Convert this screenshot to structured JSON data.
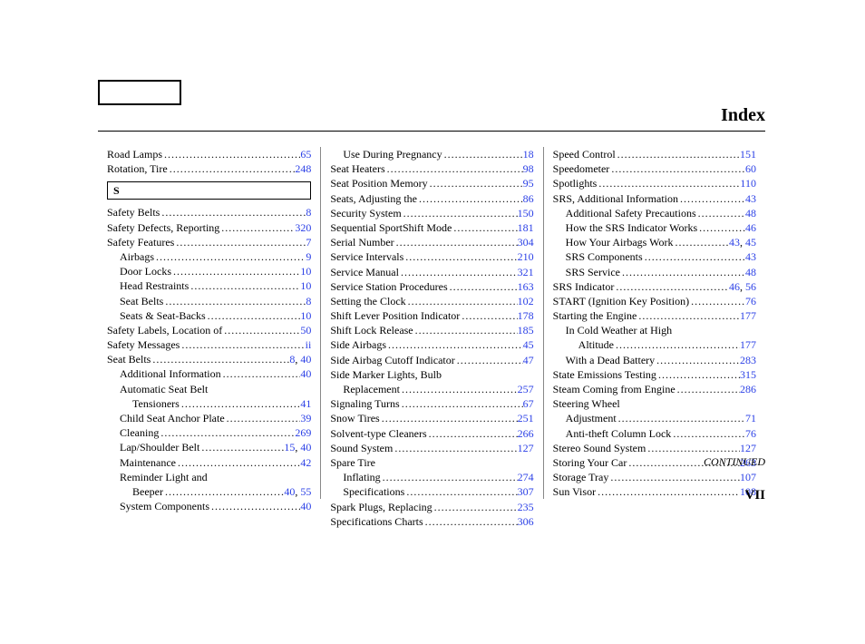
{
  "header": {
    "title": "Index"
  },
  "footer": {
    "continued": "CONTINUED",
    "folio": "VII"
  },
  "letters": {
    "S": "S"
  },
  "columns": [
    {
      "items": [
        {
          "label": "Road Lamps",
          "pages": [
            "65"
          ]
        },
        {
          "label": "Rotation, Tire",
          "pages": [
            "248"
          ]
        },
        {
          "letter": "S"
        },
        {
          "label": "Safety Belts",
          "pages": [
            "8"
          ]
        },
        {
          "label": "Safety Defects, Reporting",
          "pages": [
            "320"
          ]
        },
        {
          "label": "Safety Features",
          "pages": [
            "7"
          ]
        },
        {
          "label": "Airbags",
          "pages": [
            "9"
          ],
          "indent": 1
        },
        {
          "label": "Door Locks",
          "pages": [
            "10"
          ],
          "indent": 1
        },
        {
          "label": "Head Restraints",
          "pages": [
            "10"
          ],
          "indent": 1
        },
        {
          "label": "Seat Belts",
          "pages": [
            "8"
          ],
          "indent": 1
        },
        {
          "label": "Seats & Seat-Backs",
          "pages": [
            "10"
          ],
          "indent": 1
        },
        {
          "label": "Safety Labels, Location of",
          "pages": [
            "50"
          ]
        },
        {
          "label": "Safety Messages",
          "pages": [
            "ii"
          ]
        },
        {
          "label": "Seat Belts",
          "pages": [
            "8",
            "40"
          ]
        },
        {
          "label": "Additional Information",
          "pages": [
            "40"
          ],
          "indent": 1
        },
        {
          "label": "Automatic Seat Belt",
          "indent": 1,
          "nopage": true
        },
        {
          "label": "Tensioners",
          "pages": [
            "41"
          ],
          "indent": 2
        },
        {
          "label": "Child Seat Anchor Plate",
          "pages": [
            "39"
          ],
          "indent": 1
        },
        {
          "label": "Cleaning",
          "pages": [
            "269"
          ],
          "indent": 1
        },
        {
          "label": "Lap/Shoulder Belt",
          "pages": [
            "15",
            "40"
          ],
          "indent": 1
        },
        {
          "label": "Maintenance",
          "pages": [
            "42"
          ],
          "indent": 1
        },
        {
          "label": "Reminder Light and",
          "indent": 1,
          "nopage": true
        },
        {
          "label": "Beeper",
          "pages": [
            "40",
            "55"
          ],
          "indent": 2
        },
        {
          "label": "System Components",
          "pages": [
            "40"
          ],
          "indent": 1
        }
      ]
    },
    {
      "items": [
        {
          "label": "Use During Pregnancy",
          "pages": [
            "18"
          ],
          "indent": 1
        },
        {
          "label": "Seat Heaters",
          "pages": [
            "98"
          ]
        },
        {
          "label": "Seat Position Memory",
          "pages": [
            "95"
          ]
        },
        {
          "label": "Seats, Adjusting the",
          "pages": [
            "86"
          ]
        },
        {
          "label": "Security System",
          "pages": [
            "150"
          ]
        },
        {
          "label": "Sequential SportShift Mode",
          "pages": [
            "181"
          ]
        },
        {
          "label": "Serial Number",
          "pages": [
            "304"
          ]
        },
        {
          "label": "Service Intervals",
          "pages": [
            "210"
          ]
        },
        {
          "label": "Service Manual",
          "pages": [
            "321"
          ]
        },
        {
          "label": "Service Station Procedures",
          "pages": [
            "163"
          ]
        },
        {
          "label": "Setting the Clock",
          "pages": [
            "102"
          ]
        },
        {
          "label": "Shift Lever Position Indicator",
          "pages": [
            "178"
          ]
        },
        {
          "label": "Shift Lock Release",
          "pages": [
            "185"
          ]
        },
        {
          "label": "Side Airbags",
          "pages": [
            "45"
          ]
        },
        {
          "label": "Side Airbag Cutoff Indicator",
          "pages": [
            "47"
          ]
        },
        {
          "label": "Side Marker Lights, Bulb",
          "nopage": true
        },
        {
          "label": "Replacement",
          "pages": [
            "257"
          ],
          "indent": 1
        },
        {
          "label": "Signaling Turns",
          "pages": [
            "67"
          ]
        },
        {
          "label": "Snow Tires",
          "pages": [
            "251"
          ]
        },
        {
          "label": "Solvent-type Cleaners",
          "pages": [
            "266"
          ]
        },
        {
          "label": "Sound System",
          "pages": [
            "127"
          ]
        },
        {
          "label": "Spare Tire",
          "nopage": true
        },
        {
          "label": "Inflating",
          "pages": [
            "274"
          ],
          "indent": 1
        },
        {
          "label": "Specifications",
          "pages": [
            "307"
          ],
          "indent": 1
        },
        {
          "label": "Spark Plugs, Replacing",
          "pages": [
            "235"
          ]
        },
        {
          "label": "Specifications Charts",
          "pages": [
            "306"
          ]
        }
      ]
    },
    {
      "items": [
        {
          "label": "Speed Control",
          "pages": [
            "151"
          ]
        },
        {
          "label": "Speedometer",
          "pages": [
            "60"
          ]
        },
        {
          "label": "Spotlights",
          "pages": [
            "110"
          ]
        },
        {
          "label": "SRS, Additional Information",
          "pages": [
            "43"
          ]
        },
        {
          "label": "Additional Safety Precautions",
          "pages": [
            "48"
          ],
          "indent": 1
        },
        {
          "label": "How the SRS Indicator Works",
          "pages": [
            "46"
          ],
          "indent": 1
        },
        {
          "label": "How Your Airbags Work",
          "pages": [
            "43",
            "45"
          ],
          "indent": 1
        },
        {
          "label": "SRS Components",
          "pages": [
            "43"
          ],
          "indent": 1
        },
        {
          "label": "SRS Service",
          "pages": [
            "48"
          ],
          "indent": 1
        },
        {
          "label": "SRS Indicator",
          "pages": [
            "46",
            "56"
          ]
        },
        {
          "label": "START (Ignition Key Position)",
          "pages": [
            "76"
          ]
        },
        {
          "label": "Starting the Engine",
          "pages": [
            "177"
          ]
        },
        {
          "label": "In Cold Weather at High",
          "indent": 1,
          "nopage": true
        },
        {
          "label": "Altitude",
          "pages": [
            "177"
          ],
          "indent": 2
        },
        {
          "label": "With a Dead Battery",
          "pages": [
            "283"
          ],
          "indent": 1
        },
        {
          "label": "State Emissions Testing",
          "pages": [
            "315"
          ]
        },
        {
          "label": "Steam Coming from Engine",
          "pages": [
            "286"
          ]
        },
        {
          "label": "Steering Wheel",
          "nopage": true
        },
        {
          "label": "Adjustment",
          "pages": [
            "71"
          ],
          "indent": 1
        },
        {
          "label": "Anti-theft Column Lock",
          "pages": [
            "76"
          ],
          "indent": 1
        },
        {
          "label": "Stereo Sound System",
          "pages": [
            "127"
          ]
        },
        {
          "label": "Storing Your Car",
          "pages": [
            "263"
          ]
        },
        {
          "label": "Storage Tray",
          "pages": [
            "107"
          ]
        },
        {
          "label": "Sun Visor",
          "pages": [
            "108"
          ]
        }
      ]
    }
  ]
}
